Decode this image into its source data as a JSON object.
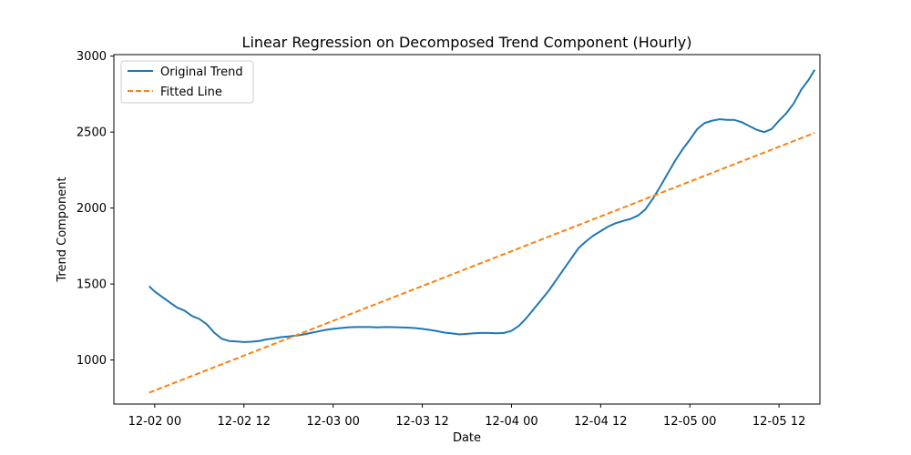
{
  "chart_data": {
    "type": "line",
    "title": "Linear Regression on Decomposed Trend Component (Hourly)",
    "xlabel": "Date",
    "ylabel": "Trend Component",
    "x_ticks": [
      {
        "label": "12-02 00",
        "hours": 0
      },
      {
        "label": "12-02 12",
        "hours": 12
      },
      {
        "label": "12-03 00",
        "hours": 24
      },
      {
        "label": "12-03 12",
        "hours": 36
      },
      {
        "label": "12-04 00",
        "hours": 48
      },
      {
        "label": "12-04 12",
        "hours": 60
      },
      {
        "label": "12-05 00",
        "hours": 72
      },
      {
        "label": "12-05 12",
        "hours": 84
      }
    ],
    "y_ticks": [
      1000,
      1500,
      2000,
      2500,
      3000
    ],
    "xlim": [
      -5.5,
      89.5
    ],
    "ylim": [
      710,
      3010
    ],
    "legend_position": "upper-left",
    "grid": false,
    "series": [
      {
        "name": "Original Trend",
        "color": "#1f77b4",
        "style": "solid",
        "points": [
          [
            -0.75,
            1485
          ],
          [
            0,
            1450
          ],
          [
            1,
            1415
          ],
          [
            2,
            1380
          ],
          [
            3,
            1345
          ],
          [
            4,
            1325
          ],
          [
            5,
            1290
          ],
          [
            6,
            1270
          ],
          [
            7,
            1235
          ],
          [
            8,
            1180
          ],
          [
            9,
            1140
          ],
          [
            10,
            1125
          ],
          [
            11,
            1122
          ],
          [
            12,
            1118
          ],
          [
            13,
            1120
          ],
          [
            14,
            1125
          ],
          [
            15,
            1135
          ],
          [
            16,
            1142
          ],
          [
            17,
            1150
          ],
          [
            18,
            1155
          ],
          [
            19,
            1160
          ],
          [
            20,
            1168
          ],
          [
            21,
            1178
          ],
          [
            22,
            1188
          ],
          [
            23,
            1198
          ],
          [
            24,
            1205
          ],
          [
            25,
            1210
          ],
          [
            26,
            1215
          ],
          [
            27,
            1217
          ],
          [
            28,
            1217
          ],
          [
            29,
            1217
          ],
          [
            30,
            1215
          ],
          [
            31,
            1217
          ],
          [
            32,
            1216
          ],
          [
            33,
            1215
          ],
          [
            34,
            1213
          ],
          [
            35,
            1210
          ],
          [
            36,
            1205
          ],
          [
            37,
            1198
          ],
          [
            38,
            1190
          ],
          [
            39,
            1180
          ],
          [
            40,
            1175
          ],
          [
            41,
            1168
          ],
          [
            42,
            1172
          ],
          [
            43,
            1176
          ],
          [
            44,
            1178
          ],
          [
            45,
            1178
          ],
          [
            46,
            1176
          ],
          [
            47,
            1178
          ],
          [
            48,
            1192
          ],
          [
            49,
            1225
          ],
          [
            50,
            1275
          ],
          [
            51,
            1335
          ],
          [
            52,
            1395
          ],
          [
            53,
            1455
          ],
          [
            54,
            1525
          ],
          [
            55,
            1595
          ],
          [
            56,
            1665
          ],
          [
            57,
            1735
          ],
          [
            58,
            1780
          ],
          [
            59,
            1818
          ],
          [
            60,
            1848
          ],
          [
            61,
            1878
          ],
          [
            62,
            1900
          ],
          [
            63,
            1915
          ],
          [
            64,
            1928
          ],
          [
            65,
            1950
          ],
          [
            66,
            1990
          ],
          [
            67,
            2060
          ],
          [
            68,
            2140
          ],
          [
            69,
            2225
          ],
          [
            70,
            2310
          ],
          [
            71,
            2385
          ],
          [
            72,
            2450
          ],
          [
            73,
            2520
          ],
          [
            74,
            2560
          ],
          [
            75,
            2575
          ],
          [
            76,
            2585
          ],
          [
            77,
            2580
          ],
          [
            78,
            2580
          ],
          [
            79,
            2565
          ],
          [
            80,
            2540
          ],
          [
            81,
            2515
          ],
          [
            82,
            2500
          ],
          [
            83,
            2520
          ],
          [
            84,
            2575
          ],
          [
            85,
            2625
          ],
          [
            86,
            2690
          ],
          [
            87,
            2780
          ],
          [
            88,
            2845
          ],
          [
            88.8,
            2910
          ]
        ]
      },
      {
        "name": "Fitted Line",
        "color": "#ff7f0e",
        "style": "dashed",
        "points": [
          [
            -0.75,
            785
          ],
          [
            88.8,
            2495
          ]
        ]
      }
    ]
  }
}
